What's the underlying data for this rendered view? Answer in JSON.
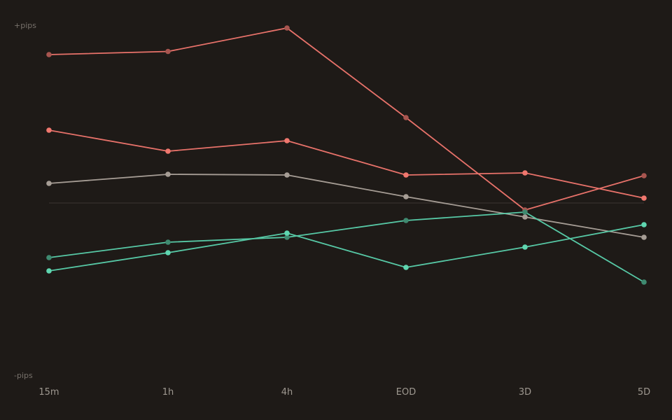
{
  "chart_data": {
    "type": "line",
    "title": "",
    "xlabel": "",
    "ylabel": "",
    "categories": [
      "15m",
      "1h",
      "4h",
      "EOD",
      "3D",
      "5D"
    ],
    "y_axis_labels": {
      "top": "+pips",
      "bottom": "-pips"
    },
    "ylim": [
      -100,
      100
    ],
    "zero_line": true,
    "grid": false,
    "legend": "none",
    "series": [
      {
        "values": [
          84.8,
          86.6,
          100.0,
          48.8,
          -4.0,
          15.6
        ],
        "color": "#e8726a",
        "marker_color": "#a8554f"
      },
      {
        "values": [
          41.6,
          29.6,
          35.6,
          16.0,
          17.2,
          2.8
        ],
        "color": "#e8726a",
        "marker_color": "#f0776e"
      },
      {
        "values": [
          11.2,
          16.4,
          16.0,
          3.6,
          -8.0,
          -19.6
        ],
        "color": "#a69d95",
        "marker_color": "#a69d95"
      },
      {
        "values": [
          -31.2,
          -22.4,
          -19.6,
          -10.0,
          -5.2,
          -45.2
        ],
        "color": "#57c9a6",
        "marker_color": "#3f8a70"
      },
      {
        "values": [
          -38.8,
          -28.4,
          -17.2,
          -36.8,
          -25.2,
          -12.4
        ],
        "color": "#57c9a6",
        "marker_color": "#5fd6b0"
      }
    ]
  }
}
